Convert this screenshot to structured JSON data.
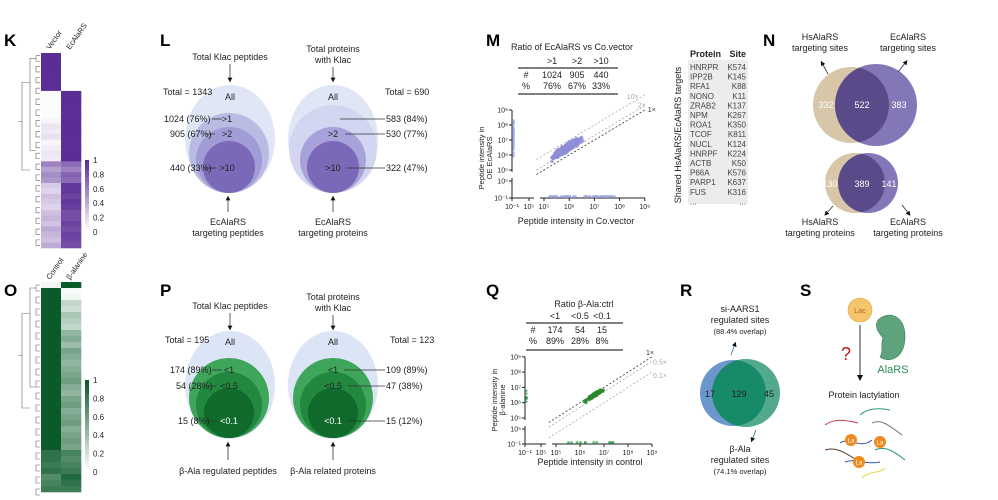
{
  "panel_labels": {
    "K": "K",
    "L": "L",
    "M": "M",
    "N": "N",
    "O": "O",
    "P": "P",
    "Q": "Q",
    "R": "R",
    "S": "S"
  },
  "colors": {
    "purple": "#5b2d96",
    "green": "#0b5a2a",
    "venn_tan": "#d7c6a8",
    "venn_purple": "#7a6bb2",
    "venn_blue": "#6b97cc",
    "venn_green": "#2e9a72",
    "question": "#c0181f",
    "alars": "#2e8b57",
    "lac": "#f5c56b",
    "la": "#ef8a1f"
  },
  "heatmap_K": {
    "columns": [
      "Vector",
      "EcAlaRS"
    ],
    "colorbar_ticks": [
      "1",
      "0.8",
      "0.6",
      "0.4",
      "0.2",
      "0"
    ],
    "rows": [
      [
        1,
        0
      ],
      [
        1,
        0
      ],
      [
        1,
        0
      ],
      [
        1,
        0
      ],
      [
        1,
        0
      ],
      [
        1,
        0
      ],
      [
        1,
        0
      ],
      [
        0.02,
        1
      ],
      [
        0.02,
        1
      ],
      [
        0.02,
        1
      ],
      [
        0.02,
        1
      ],
      [
        0.02,
        1
      ],
      [
        0.05,
        1
      ],
      [
        0.12,
        1
      ],
      [
        0.1,
        1
      ],
      [
        0.15,
        1
      ],
      [
        0.05,
        1
      ],
      [
        0.08,
        1
      ],
      [
        0.12,
        1
      ],
      [
        0.1,
        1
      ],
      [
        0.6,
        0.7
      ],
      [
        0.45,
        0.6
      ],
      [
        0.55,
        0.75
      ],
      [
        0.5,
        0.7
      ],
      [
        0.25,
        0.95
      ],
      [
        0.2,
        0.95
      ],
      [
        0.3,
        0.9
      ],
      [
        0.25,
        0.95
      ],
      [
        0.2,
        0.92
      ],
      [
        0.3,
        0.85
      ],
      [
        0.35,
        0.85
      ],
      [
        0.28,
        0.9
      ],
      [
        0.4,
        0.85
      ],
      [
        0.35,
        0.9
      ],
      [
        0.3,
        0.88
      ],
      [
        0.4,
        0.85
      ]
    ]
  },
  "heatmap_O": {
    "columns": [
      "Control",
      "β-alanine"
    ],
    "colorbar_ticks": [
      "1",
      "0.8",
      "0.6",
      "0.4",
      "0.2",
      "0"
    ],
    "rows": [
      [
        0.05,
        1
      ],
      [
        1,
        0.03
      ],
      [
        1,
        0.05
      ],
      [
        1,
        0.25
      ],
      [
        1,
        0.2
      ],
      [
        1,
        0.35
      ],
      [
        1,
        0.3
      ],
      [
        1,
        0.25
      ],
      [
        1,
        0.45
      ],
      [
        1,
        0.5
      ],
      [
        1,
        0.4
      ],
      [
        1,
        0.55
      ],
      [
        1,
        0.5
      ],
      [
        1,
        0.45
      ],
      [
        1,
        0.5
      ],
      [
        1,
        0.55
      ],
      [
        1,
        0.6
      ],
      [
        1,
        0.5
      ],
      [
        1,
        0.45
      ],
      [
        1,
        0.55
      ],
      [
        1,
        0.6
      ],
      [
        1,
        0.5
      ],
      [
        1,
        0.55
      ],
      [
        1,
        0.6
      ],
      [
        1,
        0.5
      ],
      [
        1,
        0.55
      ],
      [
        1,
        0.6
      ],
      [
        1,
        0.55
      ],
      [
        0.85,
        0.75
      ],
      [
        0.85,
        0.7
      ],
      [
        0.8,
        0.75
      ],
      [
        0.85,
        0.8
      ],
      [
        0.7,
        0.9
      ],
      [
        0.75,
        0.85
      ],
      [
        0.8,
        0.8
      ]
    ]
  },
  "L": {
    "left": {
      "top_label": "Total Klac peptides",
      "total": "Total = 1343",
      "rings": [
        "All",
        ">1",
        ">2",
        ">10"
      ],
      "counts": [
        "1024 (76%)",
        "905 (67%)",
        "440 (33%)"
      ],
      "bottom_label": [
        "EcAlaRS",
        "targeting peptides"
      ]
    },
    "right": {
      "top_label": [
        "Total proteins",
        "with Klac"
      ],
      "total": "Total = 690",
      "rings": [
        "All",
        ">2",
        ">10"
      ],
      "counts": [
        "583 (84%)",
        "530 (77%)",
        "322 (47%)"
      ],
      "bottom_label": [
        "EcAlaRS",
        "targeting proteins"
      ]
    }
  },
  "P": {
    "left": {
      "top_label": "Total Klac peptides",
      "total": "Total = 195",
      "rings": [
        "All",
        "<1",
        "<0.5",
        "<0.1"
      ],
      "counts": [
        "174 (89%)",
        "54 (28%)",
        "15 (8%)"
      ],
      "bottom_label": "β-Ala regulated peptides"
    },
    "right": {
      "top_label": [
        "Total proteins",
        "with Klac"
      ],
      "total": "Total = 123",
      "rings": [
        "All",
        "<1",
        "<0.5",
        "<0.1"
      ],
      "counts": [
        "109 (89%)",
        "47 (38%)",
        "15 (12%)"
      ],
      "bottom_label": "β-Ala related proteins"
    }
  },
  "M": {
    "table_title": "Ratio of EcAlaRS vs Co.vector",
    "headers": [
      "",
      ">1",
      ">2",
      ">10"
    ],
    "rows": [
      [
        "#",
        "1024",
        "905",
        "440"
      ],
      [
        "%",
        "76%",
        "67%",
        "33%"
      ]
    ],
    "ylabel": [
      "Peptide intensity in",
      "OE EcAlaRS"
    ],
    "xlabel": "Peptide intensity in Co.vector",
    "y_ticks": [
      "10⁹",
      "10⁸",
      "10⁷",
      "10⁶",
      "10⁵",
      "10⁵",
      "10⁻¹"
    ],
    "x_ticks": [
      "10⁻¹",
      "10⁵",
      "10⁵",
      "10⁶",
      "10⁷",
      "10⁸",
      "10⁹"
    ],
    "line_labels": [
      "10×",
      "2×",
      "1×"
    ],
    "targets_title": "Shared HsAlaRS/EcAlaRS targets",
    "targets_headers": [
      "Protein",
      "Site"
    ],
    "targets": [
      [
        "HNRPR",
        "K574"
      ],
      [
        "IPP2B",
        "K145"
      ],
      [
        "RFA1",
        "K88"
      ],
      [
        "NONO",
        "K11"
      ],
      [
        "ZRAB2",
        "K137"
      ],
      [
        "NPM",
        "K267"
      ],
      [
        "ROA1",
        "K350"
      ],
      [
        "TCOF",
        "K811"
      ],
      [
        "NUCL",
        "K124"
      ],
      [
        "HNRPF",
        "K224"
      ],
      [
        "ACTB",
        "K50"
      ],
      [
        "P66A",
        "K576"
      ],
      [
        "PARP1",
        "K637"
      ],
      [
        "FUS",
        "K316"
      ],
      [
        "...",
        "..."
      ]
    ]
  },
  "N": {
    "sites": {
      "left_label": [
        "HsAlaRS",
        "targeting sites"
      ],
      "right_label": [
        "EcAlaRS",
        "targeting sites"
      ],
      "left_only": "332",
      "overlap": "522",
      "right_only": "383"
    },
    "proteins": {
      "left_label": [
        "HsAlaRS",
        "targeting proteins"
      ],
      "right_label": [
        "EcAlaRS",
        "targeting proteins"
      ],
      "left_only": "130",
      "overlap": "389",
      "right_only": "141"
    }
  },
  "Q": {
    "table_title": "Ratio β-Ala:ctrl",
    "headers": [
      "",
      "<1",
      "<0.5",
      "<0.1"
    ],
    "rows": [
      [
        "#",
        "174",
        "54",
        "15"
      ],
      [
        "%",
        "89%",
        "28%",
        "8%"
      ]
    ],
    "ylabel": [
      "Peptide intensity in",
      "β-alanine"
    ],
    "xlabel": "Peptide intensity in control",
    "y_ticks": [
      "10⁹",
      "10⁸",
      "10⁷",
      "10⁶",
      "10⁵",
      "10⁵",
      "10⁻¹"
    ],
    "x_ticks": [
      "10⁻¹",
      "10⁵",
      "10⁵",
      "10⁶",
      "10⁷",
      "10⁸",
      "10⁹"
    ],
    "line_labels": [
      "1×",
      "0.5×",
      "0.1×"
    ]
  },
  "R": {
    "top_label": [
      "si-AARS1",
      "regulated sites",
      "(88.4% overlap)"
    ],
    "bottom_label": [
      "β-Ala",
      "regulated sites",
      "(74.1% overlap)"
    ],
    "left_only": "17",
    "overlap": "129",
    "right_only": "45"
  },
  "S": {
    "lac": "Lac",
    "question": "?",
    "enzyme": "AlaRS",
    "product": "Protein lactylation",
    "la": "La"
  }
}
